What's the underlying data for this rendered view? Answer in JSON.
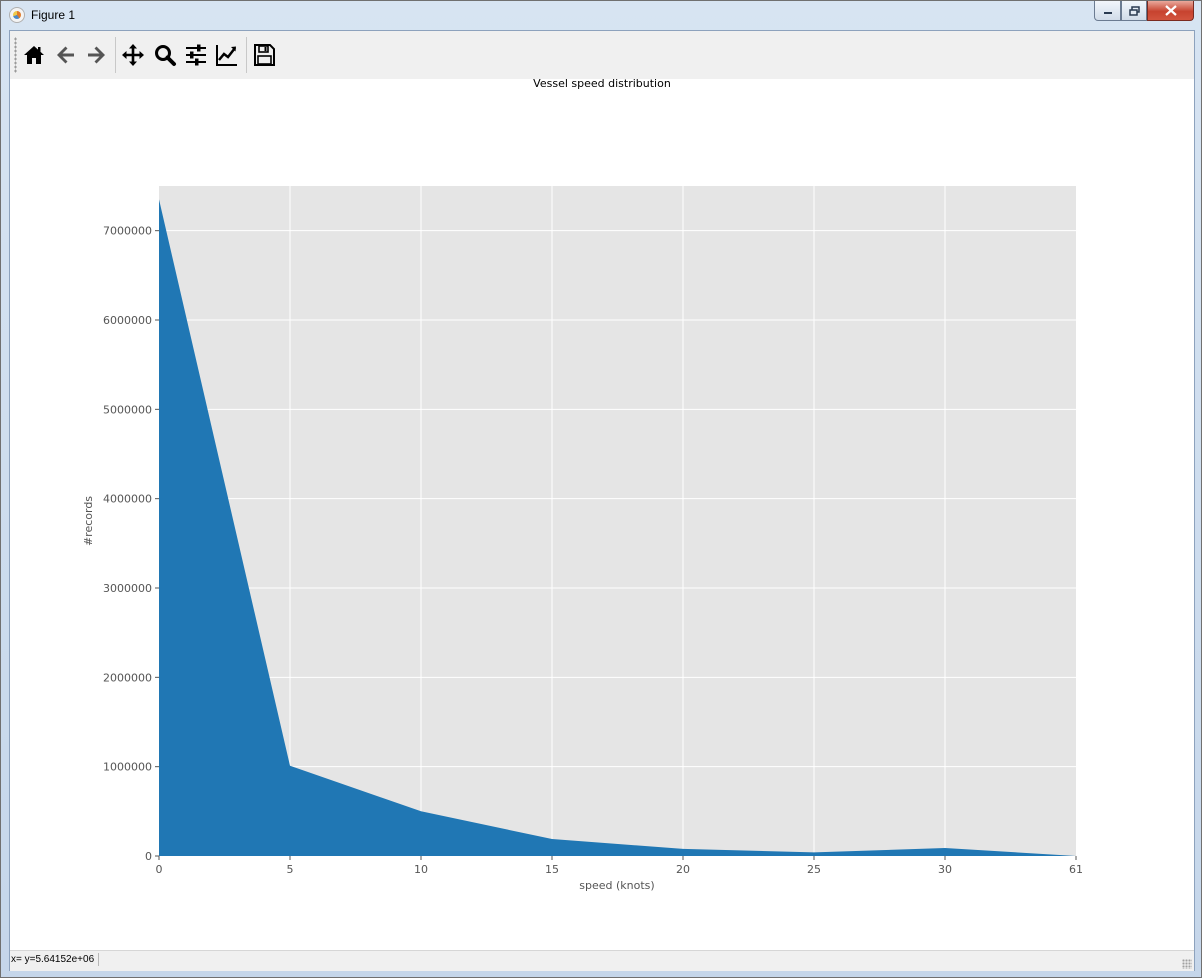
{
  "window": {
    "title": "Figure 1",
    "buttons": {
      "minimize": "minimize",
      "maximize": "maximize",
      "close": "close"
    }
  },
  "toolbar": {
    "buttons": [
      {
        "name": "home",
        "icon": "home-icon"
      },
      {
        "name": "back",
        "icon": "arrow-left-icon"
      },
      {
        "name": "forward",
        "icon": "arrow-right-icon"
      },
      {
        "name": "pan",
        "icon": "move-icon"
      },
      {
        "name": "zoom",
        "icon": "magnifier-icon"
      },
      {
        "name": "subplots",
        "icon": "sliders-icon"
      },
      {
        "name": "edit-axes",
        "icon": "line-chart-icon"
      },
      {
        "name": "save",
        "icon": "floppy-disk-icon"
      }
    ]
  },
  "status": {
    "coordinates": "x= y=5.64152e+06"
  },
  "chart_data": {
    "type": "area",
    "title": "Vessel speed distribution",
    "xlabel": "speed (knots)",
    "ylabel": "#records",
    "categories": [
      "0",
      "5",
      "10",
      "15",
      "20",
      "25",
      "30",
      "61"
    ],
    "values": [
      7350000,
      1010000,
      500000,
      190000,
      80000,
      40000,
      90000,
      0
    ],
    "ylim": [
      0,
      7500000
    ],
    "yticks": [
      0,
      1000000,
      2000000,
      3000000,
      4000000,
      5000000,
      6000000,
      7000000
    ],
    "grid": true,
    "colors": {
      "fill": "#2077b4",
      "axes_background": "#e5e5e5",
      "grid": "#ffffff",
      "tick_text": "#555555"
    }
  }
}
